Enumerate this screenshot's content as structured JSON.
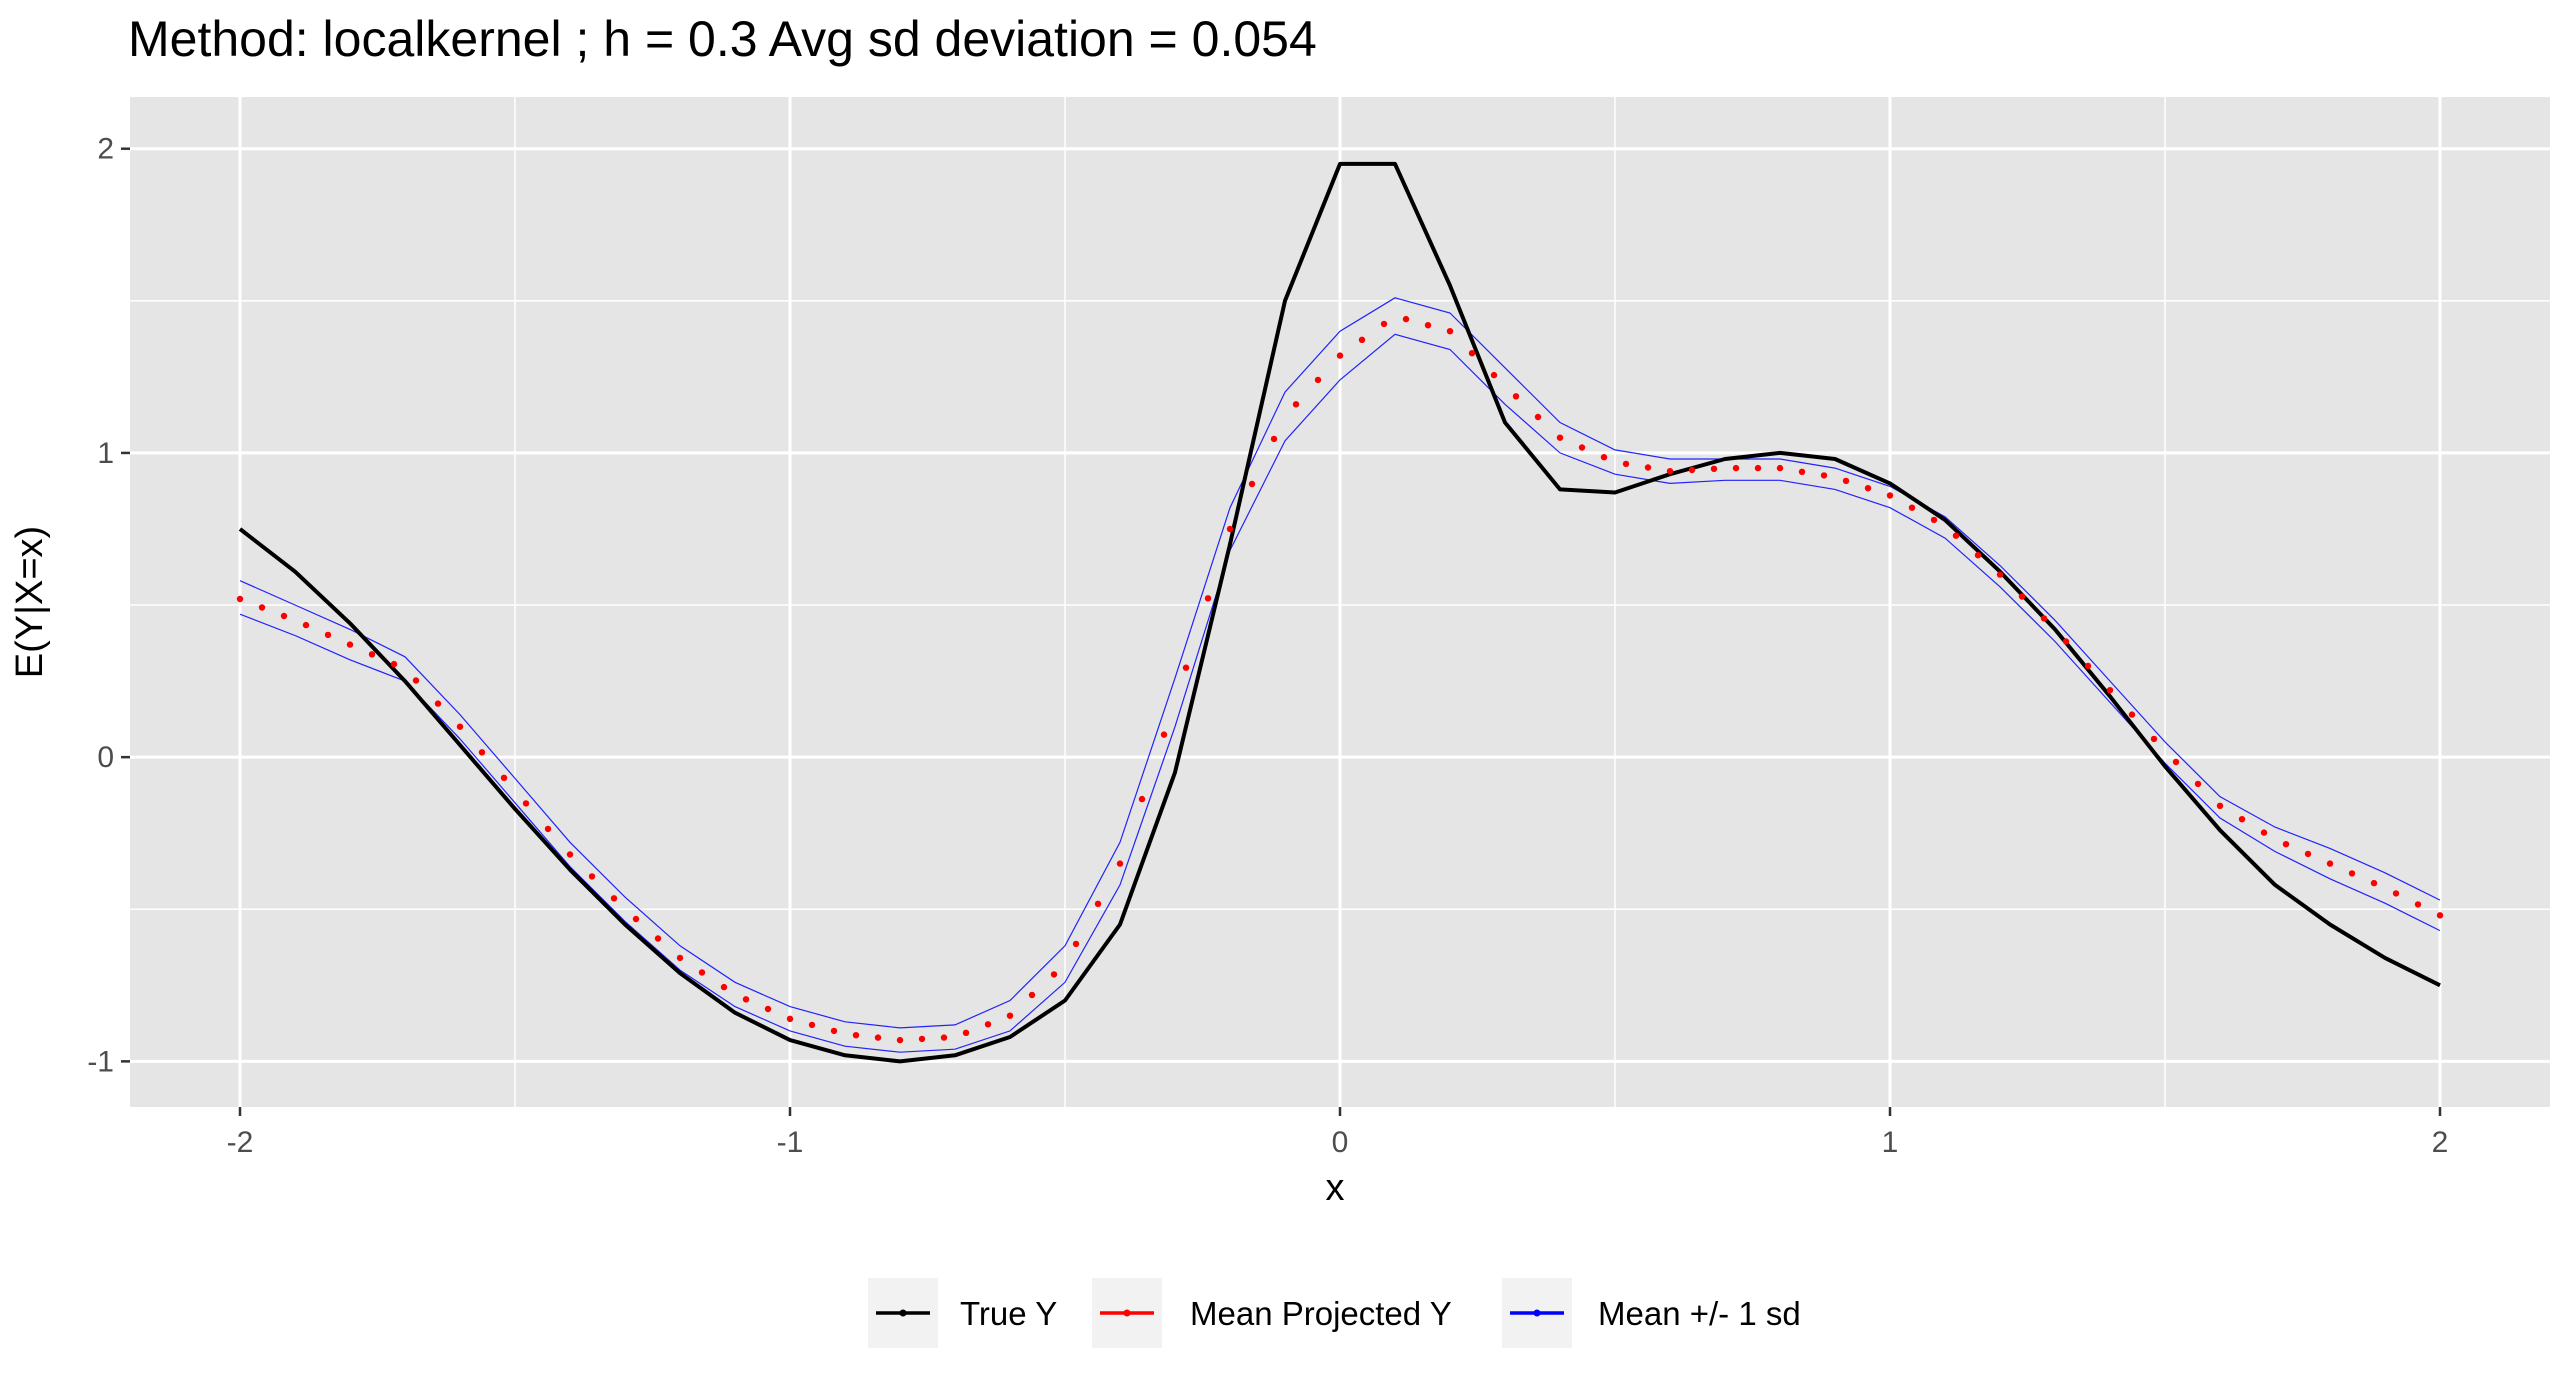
{
  "chart_data": {
    "type": "line",
    "title": "Method: localkernel ; h = 0.3 Avg sd deviation = 0.054",
    "xlabel": "x",
    "ylabel": "E(Y|X=x)",
    "xlim": [
      -2.2,
      2.2
    ],
    "ylim": [
      -1.15,
      2.17
    ],
    "x_ticks": [
      -2,
      -1,
      0,
      1,
      2
    ],
    "x_tick_labels": [
      "-2",
      "-1",
      "0",
      "1",
      "2"
    ],
    "y_ticks": [
      -1,
      0,
      1,
      2
    ],
    "y_tick_labels": [
      "-1",
      "0",
      "1",
      "2"
    ],
    "grid": true,
    "legend_position": "bottom",
    "x": [
      -2.0,
      -1.9,
      -1.8,
      -1.7,
      -1.6,
      -1.5,
      -1.4,
      -1.3,
      -1.2,
      -1.1,
      -1.0,
      -0.9,
      -0.8,
      -0.7,
      -0.6,
      -0.5,
      -0.4,
      -0.3,
      -0.2,
      -0.1,
      0.0,
      0.1,
      0.2,
      0.3,
      0.4,
      0.5,
      0.6,
      0.7,
      0.8,
      0.9,
      1.0,
      1.1,
      1.2,
      1.3,
      1.4,
      1.5,
      1.6,
      1.7,
      1.8,
      1.9,
      2.0
    ],
    "series": [
      {
        "name": "True Y",
        "color": "#000000",
        "style": "solid",
        "values": [
          0.75,
          0.61,
          0.44,
          0.25,
          0.04,
          -0.17,
          -0.37,
          -0.55,
          -0.71,
          -0.84,
          -0.93,
          -0.98,
          -1.0,
          -0.98,
          -0.92,
          -0.8,
          -0.55,
          -0.05,
          0.7,
          1.5,
          1.95,
          1.95,
          1.55,
          1.1,
          0.88,
          0.87,
          0.93,
          0.98,
          1.0,
          0.98,
          0.9,
          0.78,
          0.61,
          0.42,
          0.2,
          -0.03,
          -0.24,
          -0.42,
          -0.55,
          -0.66,
          -0.75
        ]
      },
      {
        "name": "Mean Projected Y",
        "color": "#ff0000",
        "style": "dotted",
        "values": [
          0.52,
          0.45,
          0.37,
          0.29,
          0.1,
          -0.11,
          -0.32,
          -0.5,
          -0.66,
          -0.78,
          -0.86,
          -0.91,
          -0.93,
          -0.92,
          -0.85,
          -0.68,
          -0.35,
          0.18,
          0.75,
          1.12,
          1.32,
          1.45,
          1.4,
          1.22,
          1.05,
          0.97,
          0.94,
          0.95,
          0.95,
          0.92,
          0.86,
          0.76,
          0.6,
          0.42,
          0.22,
          0.02,
          -0.16,
          -0.27,
          -0.35,
          -0.43,
          -0.52
        ]
      },
      {
        "name": "Mean +/- 1 sd",
        "color": "#0000ff",
        "style": "thin",
        "upper": [
          0.58,
          0.5,
          0.42,
          0.33,
          0.14,
          -0.07,
          -0.28,
          -0.46,
          -0.62,
          -0.74,
          -0.82,
          -0.87,
          -0.89,
          -0.88,
          -0.8,
          -0.62,
          -0.28,
          0.26,
          0.82,
          1.2,
          1.4,
          1.51,
          1.46,
          1.28,
          1.1,
          1.01,
          0.98,
          0.98,
          0.98,
          0.95,
          0.89,
          0.79,
          0.63,
          0.45,
          0.25,
          0.05,
          -0.13,
          -0.23,
          -0.3,
          -0.38,
          -0.47
        ],
        "lower": [
          0.47,
          0.4,
          0.32,
          0.25,
          0.06,
          -0.15,
          -0.36,
          -0.54,
          -0.7,
          -0.82,
          -0.9,
          -0.95,
          -0.97,
          -0.96,
          -0.9,
          -0.74,
          -0.42,
          0.1,
          0.68,
          1.04,
          1.24,
          1.39,
          1.34,
          1.16,
          1.0,
          0.93,
          0.9,
          0.91,
          0.91,
          0.88,
          0.82,
          0.72,
          0.56,
          0.38,
          0.18,
          -0.02,
          -0.2,
          -0.31,
          -0.4,
          -0.48,
          -0.57
        ]
      }
    ],
    "legend": [
      "True Y",
      "Mean Projected Y",
      "Mean +/- 1 sd"
    ],
    "colors": {
      "panel": "#e5e5e5",
      "grid": "#ffffff"
    }
  }
}
